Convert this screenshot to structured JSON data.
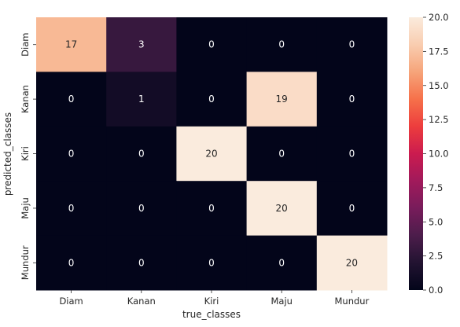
{
  "chart_data": {
    "type": "heatmap",
    "title": "",
    "xlabel": "true_classes",
    "ylabel": "predicted_classes",
    "x_categories": [
      "Diam",
      "Kanan",
      "Kiri",
      "Maju",
      "Mundur"
    ],
    "y_categories": [
      "Diam",
      "Kanan",
      "Kiri",
      "Maju",
      "Mundur"
    ],
    "values": [
      [
        17,
        3,
        0,
        0,
        0
      ],
      [
        0,
        1,
        0,
        19,
        0
      ],
      [
        0,
        0,
        20,
        0,
        0
      ],
      [
        0,
        0,
        0,
        20,
        0
      ],
      [
        0,
        0,
        0,
        0,
        20
      ]
    ],
    "colorbar": {
      "vmin": 0,
      "vmax": 20,
      "ticks": [
        "0.0",
        "2.5",
        "5.0",
        "7.5",
        "10.0",
        "12.5",
        "15.0",
        "17.5",
        "20.0"
      ]
    },
    "colormap": [
      "#03051a",
      "#221331",
      "#4c1d4b",
      "#781c5b",
      "#a11a5b",
      "#cb1b4f",
      "#ed3d3d",
      "#f6714a",
      "#f6a47a",
      "#f9cdb0",
      "#faebdd"
    ],
    "annotation_colors": {
      "light": "#ffffff",
      "dark": "#262626"
    }
  }
}
